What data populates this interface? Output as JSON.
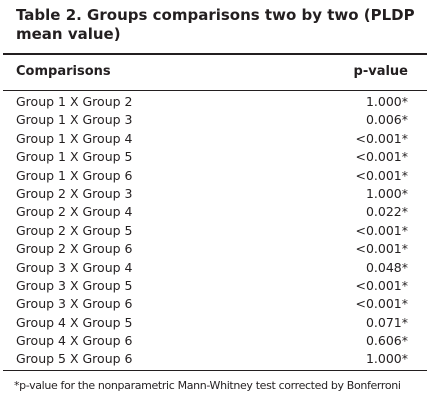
{
  "table": {
    "title": "Table 2. Groups comparisons two by two (PLDP mean value)",
    "headers": {
      "comparisons": "Comparisons",
      "p_value": "p-value"
    },
    "rows": [
      {
        "comparison": "Group 1 X Group 2",
        "p_value": "1.000*"
      },
      {
        "comparison": "Group 1 X Group 3",
        "p_value": "0.006*"
      },
      {
        "comparison": "Group 1 X Group 4",
        "p_value": "<0.001*"
      },
      {
        "comparison": "Group 1 X Group 5",
        "p_value": "<0.001*"
      },
      {
        "comparison": "Group 1 X Group 6",
        "p_value": "<0.001*"
      },
      {
        "comparison": "Group 2 X Group 3",
        "p_value": "1.000*"
      },
      {
        "comparison": "Group 2 X Group 4",
        "p_value": "0.022*"
      },
      {
        "comparison": "Group 2 X Group 5",
        "p_value": "<0.001*"
      },
      {
        "comparison": "Group 2 X Group 6",
        "p_value": "<0.001*"
      },
      {
        "comparison": "Group 3 X Group 4",
        "p_value": "0.048*"
      },
      {
        "comparison": "Group 3 X Group 5",
        "p_value": "<0.001*"
      },
      {
        "comparison": "Group 3 X Group 6",
        "p_value": "<0.001*"
      },
      {
        "comparison": "Group 4 X Group 5",
        "p_value": "0.071*"
      },
      {
        "comparison": "Group 4 X Group 6",
        "p_value": "0.606*"
      },
      {
        "comparison": "Group 5 X Group 6",
        "p_value": "1.000*"
      }
    ],
    "footnote": "*p-value for the nonparametric Mann-Whitney test corrected by Bonferroni"
  }
}
